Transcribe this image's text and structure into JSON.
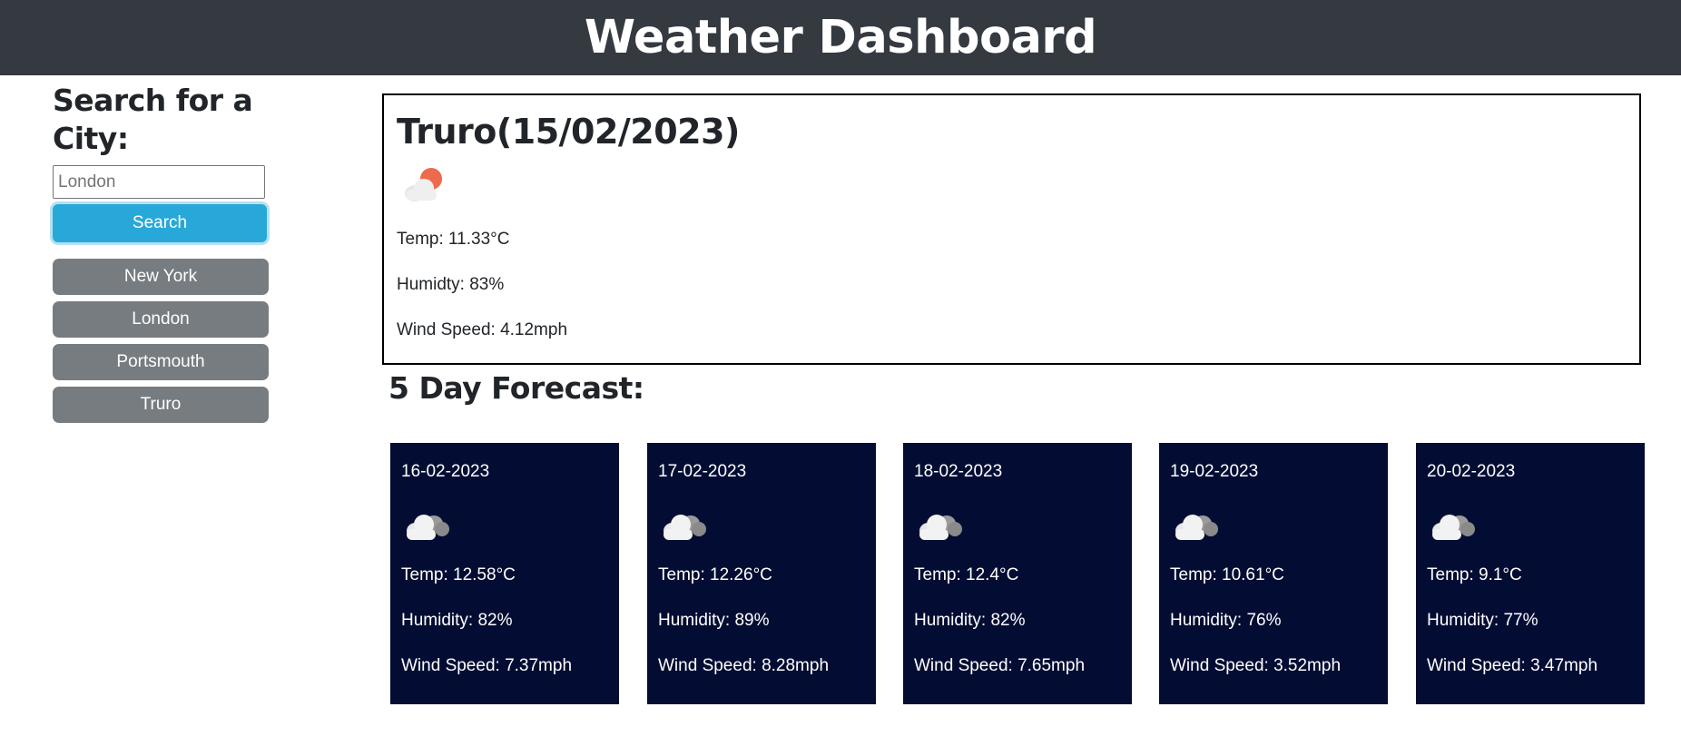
{
  "header": {
    "title": "Weather Dashboard"
  },
  "search": {
    "heading": "Search for a City:",
    "input_value": "",
    "placeholder": "London",
    "button_label": "Search",
    "accent_color": "#28a8d8"
  },
  "history": [
    {
      "label": "New York"
    },
    {
      "label": "London"
    },
    {
      "label": "Portsmouth"
    },
    {
      "label": "Truro"
    }
  ],
  "current": {
    "title": "Truro(15/02/2023)",
    "icon": "cloud-sun-icon",
    "temp": "Temp: 11.33°C",
    "humidity": "Humidty: 83%",
    "wind": "Wind Speed: 4.12mph"
  },
  "forecast": {
    "heading": "5 Day Forecast:",
    "card_color": "#030d33",
    "days": [
      {
        "date": "16-02-2023",
        "icon": "cloud-icon",
        "temp": "Temp: 12.58°C",
        "humidity": "Humidity: 82%",
        "wind": "Wind Speed: 7.37mph"
      },
      {
        "date": "17-02-2023",
        "icon": "cloud-icon",
        "temp": "Temp: 12.26°C",
        "humidity": "Humidity: 89%",
        "wind": "Wind Speed: 8.28mph"
      },
      {
        "date": "18-02-2023",
        "icon": "cloud-icon",
        "temp": "Temp: 12.4°C",
        "humidity": "Humidity: 82%",
        "wind": "Wind Speed: 7.65mph"
      },
      {
        "date": "19-02-2023",
        "icon": "cloud-icon",
        "temp": "Temp: 10.61°C",
        "humidity": "Humidity: 76%",
        "wind": "Wind Speed: 3.52mph"
      },
      {
        "date": "20-02-2023",
        "icon": "cloud-icon",
        "temp": "Temp: 9.1°C",
        "humidity": "Humidity: 77%",
        "wind": "Wind Speed: 3.47mph"
      }
    ]
  }
}
